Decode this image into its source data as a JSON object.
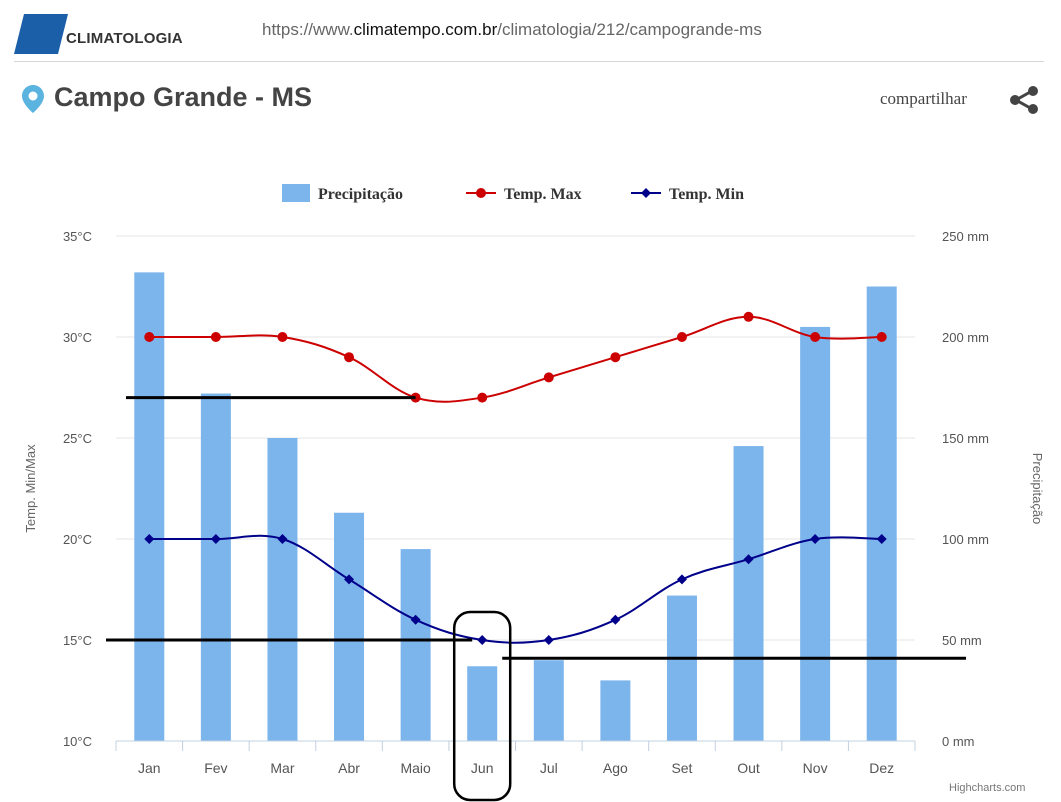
{
  "header": {
    "brand_label": "CLIMATOLOGIA",
    "url_prefix": "https://www.",
    "url_host": "climatempo.com.br",
    "url_path": "/climatologia/212/campogrande-ms",
    "brand_color": "#1a5fa8"
  },
  "location": {
    "title": "Campo Grande - MS",
    "icon": "map-pin-icon",
    "icon_color": "#5bb3e0"
  },
  "share": {
    "label": "compartilhar",
    "icon": "share-icon"
  },
  "credit": "Highcharts.com",
  "chart_data": {
    "type": "bar+line",
    "categories": [
      "Jan",
      "Fev",
      "Mar",
      "Abr",
      "Maio",
      "Jun",
      "Jul",
      "Ago",
      "Set",
      "Out",
      "Nov",
      "Dez"
    ],
    "series": [
      {
        "name": "Precipitação",
        "type": "bar",
        "axis": "right",
        "color": "#7cb5ec",
        "values": [
          232,
          172,
          150,
          113,
          95,
          37,
          40,
          30,
          72,
          146,
          205,
          225
        ]
      },
      {
        "name": "Temp. Max",
        "type": "line",
        "axis": "left",
        "color": "#cc0000",
        "values": [
          30,
          30,
          30,
          29,
          27,
          27,
          28,
          29,
          30,
          31,
          30,
          30
        ]
      },
      {
        "name": "Temp. Min",
        "type": "line",
        "axis": "left",
        "color": "#00008b",
        "values": [
          20,
          20,
          20,
          18,
          16,
          15,
          15,
          16,
          18,
          19,
          20,
          20
        ]
      }
    ],
    "left_axis": {
      "label": "Temp. Min/Max",
      "range": [
        10,
        35
      ],
      "ticks": [
        "10°C",
        "15°C",
        "20°C",
        "25°C",
        "30°C",
        "35°C"
      ]
    },
    "right_axis": {
      "label": "Precipitação",
      "range": [
        0,
        250
      ],
      "ticks": [
        "0 mm",
        "50 mm",
        "100 mm",
        "150 mm",
        "200 mm",
        "250 mm"
      ]
    },
    "legend_position": "top-center",
    "grid": true,
    "annotations": {
      "hlines_left_axis": [
        {
          "value": 27,
          "from": "before Jan",
          "to": "Maio"
        },
        {
          "value": 15,
          "from": "before Jan",
          "to": "Jun"
        }
      ],
      "hlines_right_axis": [
        {
          "value": 37,
          "from": "Jun",
          "to": "beyond Dez"
        }
      ],
      "highlight_category": "Jun"
    }
  }
}
